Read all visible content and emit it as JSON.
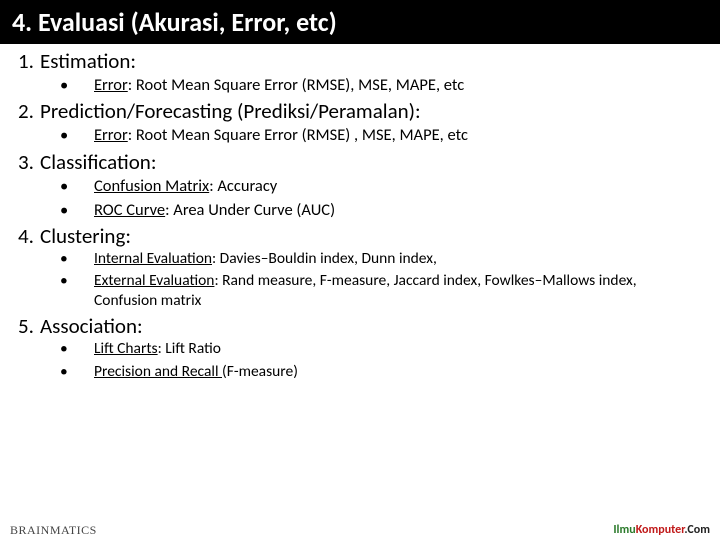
{
  "title": "4. Evaluasi (Akurasi, Error, etc)",
  "sections": [
    {
      "num": "1.",
      "head": "Estimation:",
      "subs": [
        {
          "label": "Error",
          "rest": ": Root Mean Square Error (RMSE), MSE, MAPE, etc"
        }
      ],
      "size": "lg"
    },
    {
      "num": "2.",
      "head": "Prediction/Forecasting (Prediksi/Peramalan):",
      "subs": [
        {
          "label": "Error",
          "rest": ": Root Mean Square Error (RMSE) , MSE, MAPE, etc"
        }
      ],
      "size": "lg"
    },
    {
      "num": "3.",
      "head": "Classification:",
      "subs": [
        {
          "label": "Confusion Matrix",
          "rest": ": Accuracy"
        },
        {
          "label": "ROC Curve",
          "rest": ": Area Under Curve (AUC)"
        }
      ],
      "size": "lg"
    },
    {
      "num": "4.",
      "head": "Clustering:",
      "subs": [
        {
          "label": "Internal Evaluation",
          "rest": ": Davies–Bouldin index, Dunn index,"
        },
        {
          "label": "External Evaluation",
          "rest": ":  Rand measure, F-measure, Jaccard index, Fowlkes–Mallows index, Confusion matrix"
        }
      ],
      "size": "sm"
    },
    {
      "num": "5.",
      "head": "Association:",
      "subs": [
        {
          "label": "Lift Charts",
          "rest": ": Lift Ratio"
        },
        {
          "label": "Precision and Recall ",
          "rest": "(F-measure)"
        }
      ],
      "size": "sm"
    }
  ],
  "footer": {
    "left_brand": "BRAINMATICS",
    "left_sub": "—",
    "right_ilmu": "Ilmu",
    "right_komp": "Komputer",
    "right_com": ".Com"
  }
}
